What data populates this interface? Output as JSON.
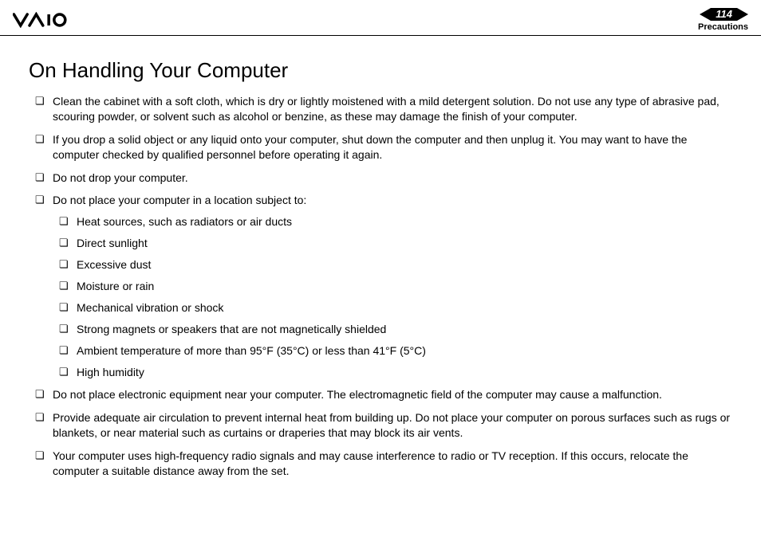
{
  "header": {
    "page_number": "114",
    "section": "Precautions"
  },
  "title": "On Handling Your Computer",
  "items": [
    {
      "text": "Clean the cabinet with a soft cloth, which is dry or lightly moistened with a mild detergent solution. Do not use any type of abrasive pad, scouring powder, or solvent such as alcohol or benzine, as these may damage the finish of your computer."
    },
    {
      "text": "If you drop a solid object or any liquid onto your computer, shut down the computer and then unplug it. You may want to have the computer checked by qualified personnel before operating it again."
    },
    {
      "text": "Do not drop your computer."
    },
    {
      "text": "Do not place your computer in a location subject to:",
      "sub": [
        "Heat sources, such as radiators or air ducts",
        "Direct sunlight",
        "Excessive dust",
        "Moisture or rain",
        "Mechanical vibration or shock",
        "Strong magnets or speakers that are not magnetically shielded",
        "Ambient temperature of more than 95°F (35°C) or less than 41°F (5°C)",
        "High humidity"
      ]
    },
    {
      "text": "Do not place electronic equipment near your computer. The electromagnetic field of the computer may cause a malfunction."
    },
    {
      "text": "Provide adequate air circulation to prevent internal heat from building up. Do not place your computer on porous surfaces such as rugs or blankets, or near material such as curtains or draperies that may block its air vents."
    },
    {
      "text": "Your computer uses high-frequency radio signals and may cause interference to radio or TV reception. If this occurs, relocate the computer a suitable distance away from the set."
    }
  ],
  "colors": {
    "text": "#000000",
    "background": "#ffffff"
  }
}
